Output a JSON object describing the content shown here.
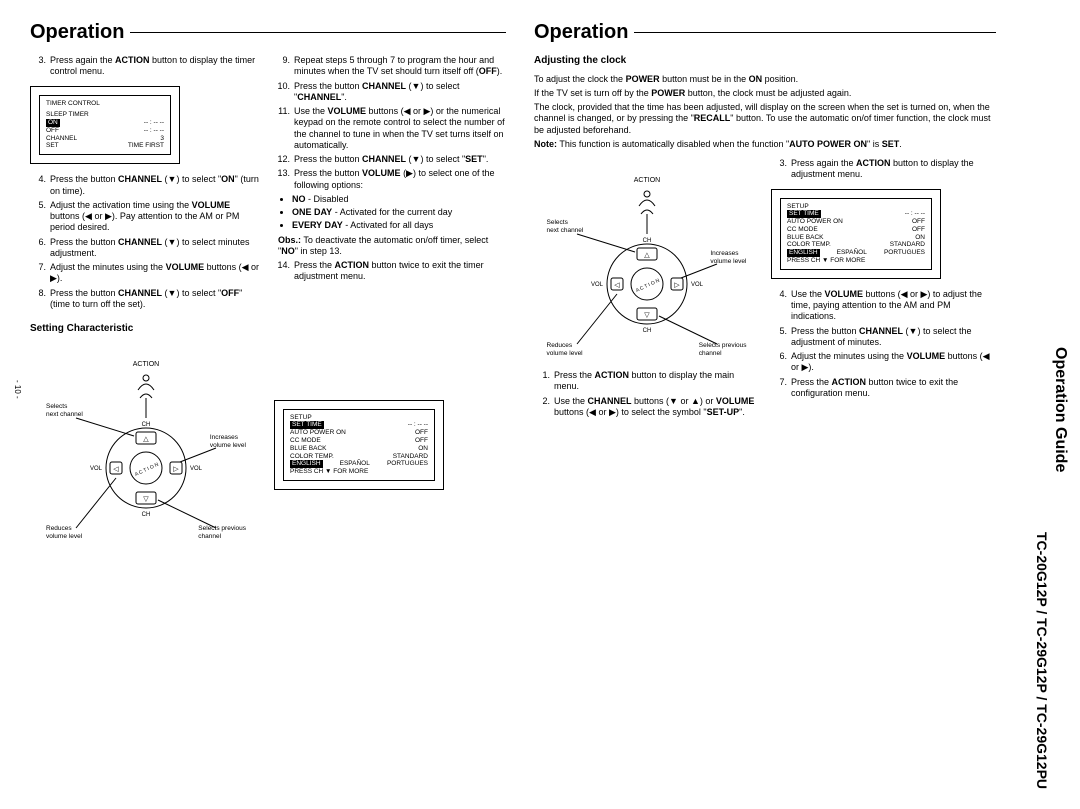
{
  "sidebar": {
    "title": "Operation Guide",
    "models": "TC-20G12P / TC-29G12P / TC-29G12PU"
  },
  "page_number": "- 10 -",
  "left": {
    "heading": "Operation",
    "steps_a": [
      {
        "n": "3.",
        "t": "Press again the <b>ACTION</b> button to display the timer control menu."
      }
    ],
    "timer_box": {
      "title": "TIMER CONTROL",
      "row1": "SLEEP TIMER",
      "on": "ON",
      "on_val": "-- : -- --",
      "off": "OFF",
      "off_val": "-- : -- --",
      "ch": "CHANNEL",
      "ch_val": "3",
      "set": "SET",
      "set_val": "TIME FIRST"
    },
    "steps_b": [
      {
        "n": "4.",
        "t": "Press the button <b>CHANNEL</b> (▼) to select \"<b>ON</b>\" (turn on time)."
      },
      {
        "n": "5.",
        "t": "Adjust the activation time using the <b>VOLUME</b> buttons (◀ or ▶). Pay attention to the AM or PM period desired."
      },
      {
        "n": "6.",
        "t": "Press the button <b>CHANNEL</b> (▼) to select minutes adjustment."
      },
      {
        "n": "7.",
        "t": "Adjust the minutes using the <b>VOLUME</b> buttons (◀ or ▶)."
      },
      {
        "n": "8.",
        "t": "Press the button <b>CHANNEL</b> (▼) to select \"<b>OFF</b>\"(time to turn off the set)."
      }
    ],
    "steps_c": [
      {
        "n": "9.",
        "t": "Repeat steps 5 through 7 to program the hour and minutes when the TV set should turn itself off (<b>OFF</b>)."
      },
      {
        "n": "10.",
        "t": "Press the button <b>CHANNEL</b> (▼) to select \"<b>CHANNEL</b>\"."
      },
      {
        "n": "11.",
        "t": "Use the <b>VOLUME</b> buttons (◀ or ▶) or the numerical keypad on the remote control to select the number of the channel to tune in when the TV set turns itself on automatically."
      },
      {
        "n": "12.",
        "t": "Press the button <b>CHANNEL</b> (▼) to select \"<b>SET</b>\"."
      },
      {
        "n": "13.",
        "t": "Press the button <b>VOLUME</b> (▶) to select one of the following options:"
      }
    ],
    "bullets": [
      "<b>NO</b> - Disabled",
      "<b>ONE DAY</b> - Activated for the current day",
      "<b>EVERY DAY</b> - Activated for all days"
    ],
    "obs": "<b>Obs.:</b> To deactivate the automatic on/off timer, select \"<b>NO</b>\" in step 13.",
    "step14": {
      "n": "14.",
      "t": "Press the <b>ACTION</b> button twice to exit the timer adjustment menu."
    },
    "subhead": "Setting Characteristic",
    "remote_labels": {
      "action": "ACTION",
      "sel_next": "Selects\nnext channel",
      "inc": "Increases\nvolume level",
      "red": "Reduces\nvolume level",
      "sel_prev": "Selects previous\nchannel",
      "ch": "CH",
      "vol": "VOL"
    },
    "setup_box": {
      "title": "SETUP",
      "r1": "SET TIME",
      "r1v": "-- : -- --",
      "r2": "AUTO POWER ON",
      "r2v": "OFF",
      "r3": "CC MODE",
      "r3v": "OFF",
      "r4": "BLUE BACK",
      "r4v": "ON",
      "r5": "COLOR TEMP.",
      "r5v": "STANDARD",
      "r6l": "ENGLISH",
      "r6m": "ESPAÑOL",
      "r6r": "PORTUGUES",
      "r7": "PRESS CH ▼ FOR MORE"
    }
  },
  "right": {
    "heading": "Operation",
    "subhead": "Adjusting the clock",
    "intro1": "To adjust the clock the <b>POWER</b> button must be in the <b>ON</b> position.",
    "intro2": "If the TV set is turn off by the <b>POWER</b> button, the clock must be adjusted again.",
    "intro3": "The clock, provided that the time has been adjusted, will display on the screen when the set is turned on, when the channel is changed, or by pressing the \"<b>RECALL</b>\" button. To use the automatic on/of timer function, the clock must be adjusted beforehand.",
    "note": "<b>Note:</b> This function is automatically disabled when the function \"<b>AUTO POWER ON</b>\" is <b>SET</b>.",
    "steps_l": [
      {
        "n": "1.",
        "t": "Press the <b>ACTION</b> button to display the main menu."
      },
      {
        "n": "2.",
        "t": "Use the <b>CHANNEL</b> buttons (▼ or ▲) or <b>VOLUME</b> buttons (◀ or ▶) to select the symbol \"<b>SET-UP</b>\"."
      }
    ],
    "steps_r": [
      {
        "n": "3.",
        "t": "Press again the <b>ACTION</b> button to display the adjustment menu."
      }
    ],
    "steps_r2": [
      {
        "n": "4.",
        "t": "Use the <b>VOLUME</b> buttons (◀ or ▶) to adjust the time, paying attention to the AM and PM indications."
      },
      {
        "n": "5.",
        "t": "Press the button <b>CHANNEL</b> (▼) to select the adjustment of minutes."
      },
      {
        "n": "6.",
        "t": "Adjust the minutes using the <b>VOLUME</b> buttons (◀ or ▶)."
      },
      {
        "n": "7.",
        "t": "Press the <b>ACTION</b> button twice to exit the configuration menu."
      }
    ]
  }
}
